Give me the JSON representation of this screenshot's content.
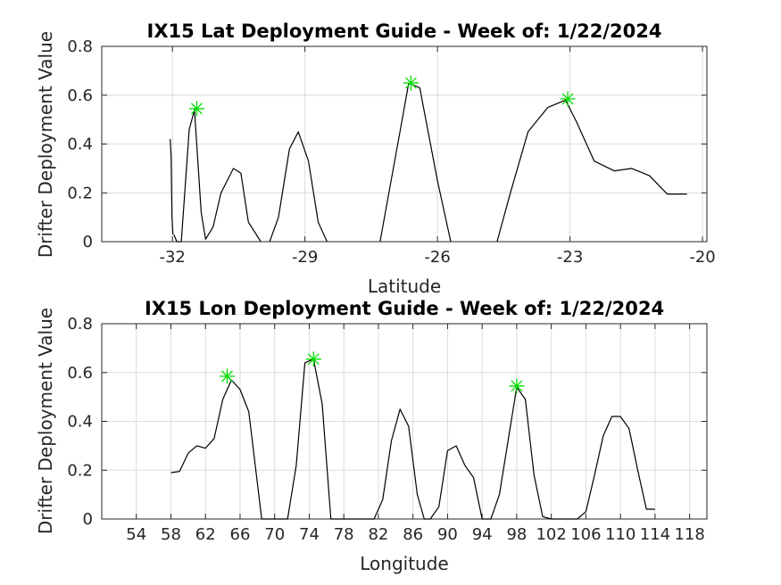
{
  "colors": {
    "line": "#000000",
    "marker": "#00dd00",
    "grid": "#dcdcdc",
    "axis": "#262626"
  },
  "chart_data": [
    {
      "type": "line",
      "title": "IX15 Lat Deployment Guide - Week of: 1/22/2024",
      "xlabel": "Latitude",
      "ylabel": "Drifter Deployment Value",
      "xlim": [
        -33.6,
        -19.9
      ],
      "ylim": [
        0,
        0.8
      ],
      "xticks": [
        -32,
        -29,
        -26,
        -23,
        -20
      ],
      "xtick_labels": [
        "-32",
        "-29",
        "-26",
        "-23",
        "-20"
      ],
      "yticks": [
        0,
        0.2,
        0.4,
        0.6,
        0.8
      ],
      "ytick_labels": [
        "0",
        "0.2",
        "0.4",
        "0.6",
        "0.8"
      ],
      "grid": true,
      "segments": [
        {
          "x": [
            -32.05,
            -32.03,
            -32.01,
            -31.99
          ],
          "y": [
            0.42,
            0.35,
            0.1,
            0.03
          ]
        },
        {
          "x": [
            -31.97,
            -31.9,
            -31.8,
            -31.62,
            -31.5,
            -31.35,
            -31.25,
            -31.08,
            -30.9,
            -30.62,
            -30.45,
            -30.28,
            -30.0
          ],
          "y": [
            0.03,
            0.0,
            0.0,
            0.46,
            0.54,
            0.12,
            0.01,
            0.06,
            0.2,
            0.3,
            0.28,
            0.08,
            0.0
          ]
        },
        {
          "x": [
            -29.8,
            -29.6,
            -29.35,
            -29.15,
            -28.92,
            -28.7,
            -28.5
          ],
          "y": [
            0.0,
            0.1,
            0.38,
            0.45,
            0.33,
            0.08,
            0.0
          ]
        },
        {
          "x": [
            -27.3,
            -26.85,
            -26.65,
            -26.4,
            -26.0,
            -25.7
          ],
          "y": [
            0.0,
            0.45,
            0.65,
            0.63,
            0.25,
            0.0
          ]
        },
        {
          "x": [
            -24.65,
            -24.35,
            -23.95,
            -23.5,
            -23.1,
            -22.85,
            -22.45,
            -22.0,
            -21.6,
            -21.2,
            -20.8,
            -20.35
          ],
          "y": [
            0.0,
            0.2,
            0.45,
            0.55,
            0.58,
            0.49,
            0.33,
            0.29,
            0.3,
            0.27,
            0.195,
            0.195
          ]
        }
      ],
      "markers": {
        "x": [
          -31.45,
          -26.6,
          -23.05
        ],
        "y": [
          0.545,
          0.65,
          0.585
        ]
      }
    },
    {
      "type": "line",
      "title": "IX15 Lon Deployment Guide - Week of: 1/22/2024",
      "xlabel": "Longitude",
      "ylabel": "Drifter Deployment Value",
      "xlim": [
        50,
        120
      ],
      "ylim": [
        0,
        0.8
      ],
      "xticks": [
        54,
        58,
        62,
        66,
        70,
        74,
        78,
        82,
        86,
        90,
        94,
        98,
        102,
        106,
        110,
        114,
        118
      ],
      "xtick_labels": [
        "54",
        "58",
        "62",
        "66",
        "70",
        "74",
        "78",
        "82",
        "86",
        "90",
        "94",
        "98",
        "102",
        "106",
        "110",
        "114",
        "118"
      ],
      "yticks": [
        0,
        0.2,
        0.4,
        0.6,
        0.8
      ],
      "ytick_labels": [
        "0",
        "0.2",
        "0.4",
        "0.6",
        "0.8"
      ],
      "grid": true,
      "segments": [
        {
          "x": [
            58.0,
            59.0,
            60.0,
            61.0,
            62.0,
            63.0,
            64.0,
            65.0,
            66.0,
            67.0,
            68.5,
            69.5,
            71.5,
            72.5,
            73.5,
            74.5,
            75.5,
            76.5,
            77.5,
            78.5,
            79.5,
            80.5,
            81.5,
            82.5,
            83.5,
            84.5,
            85.5,
            86.5,
            87.3,
            88.0,
            89.0,
            90.0,
            91.0,
            92.0,
            93.0,
            94.0,
            95.0,
            96.0,
            97.0,
            98.0,
            99.0,
            100.0,
            101.0,
            102.0,
            103.0,
            104.0,
            105.0,
            106.0,
            107.0,
            108.0,
            109.0,
            110.0,
            111.0,
            112.0,
            113.0,
            114.0
          ],
          "y": [
            0.19,
            0.195,
            0.27,
            0.3,
            0.29,
            0.33,
            0.49,
            0.57,
            0.53,
            0.44,
            0.0,
            0.0,
            0.0,
            0.22,
            0.64,
            0.655,
            0.47,
            0.0,
            0.0,
            0.0,
            0.0,
            0.0,
            0.0,
            0.08,
            0.32,
            0.45,
            0.38,
            0.1,
            0.0,
            0.0,
            0.05,
            0.28,
            0.3,
            0.22,
            0.17,
            0.0,
            0.0,
            0.1,
            0.32,
            0.54,
            0.49,
            0.18,
            0.01,
            0.0,
            0.0,
            0.0,
            0.0,
            0.03,
            0.18,
            0.34,
            0.42,
            0.42,
            0.37,
            0.2,
            0.04,
            0.04
          ]
        }
      ],
      "markers": {
        "x": [
          64.5,
          74.5,
          98.0
        ],
        "y": [
          0.585,
          0.655,
          0.545
        ]
      }
    }
  ]
}
